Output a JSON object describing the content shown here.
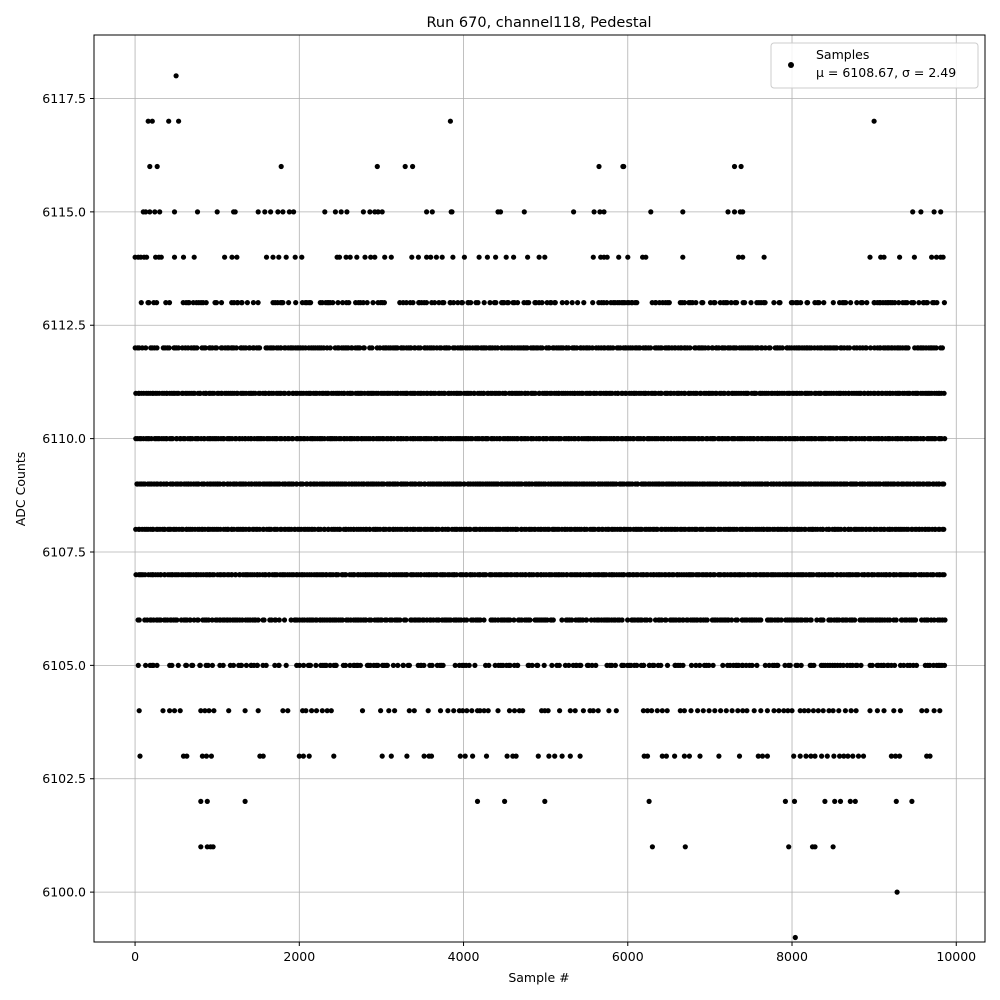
{
  "chart_data": {
    "type": "scatter",
    "title": "Run 670, channel118, Pedestal",
    "xlabel": "Sample #",
    "ylabel": "ADC Counts",
    "xlim": [
      -500,
      10350
    ],
    "ylim": [
      6098.9,
      6118.9
    ],
    "xticks": [
      0,
      2000,
      4000,
      6000,
      8000,
      10000
    ],
    "xtick_labels": [
      "0",
      "2000",
      "4000",
      "6000",
      "8000",
      "10000"
    ],
    "yticks": [
      6100.0,
      6102.5,
      6105.0,
      6107.5,
      6110.0,
      6112.5,
      6115.0,
      6117.5
    ],
    "ytick_labels": [
      "6100.0",
      "6102.5",
      "6105.0",
      "6107.5",
      "6110.0",
      "6112.5",
      "6115.0",
      "6117.5"
    ],
    "grid": true,
    "legend_position": "top-right",
    "series": [
      {
        "name": "Samples",
        "color": "#000000",
        "marker": "dot",
        "stats_label": "μ = 6108.67, σ = 2.49",
        "mu": 6108.67,
        "sigma": 2.49,
        "x_range": [
          0,
          9840
        ],
        "n_samples": 9840,
        "levels": [
          {
            "y": 6099,
            "x": [
              8040
            ]
          },
          {
            "y": 6100,
            "x": [
              9280
            ]
          },
          {
            "y": 6101,
            "x": [
              800,
              880,
              920,
              950,
              6300,
              6700,
              7960,
              8250,
              8280,
              8500
            ]
          },
          {
            "y": 6102,
            "x": [
              800,
              880,
              1340,
              4170,
              4500,
              4990,
              6260,
              7920,
              8030,
              8400,
              8520,
              8590,
              8710,
              8770,
              9270,
              9460
            ]
          },
          {
            "y": 6103,
            "x": [
              60,
              590,
              630,
              820,
              870,
              930,
              1520,
              1560,
              2000,
              2050,
              2120,
              2420,
              3010,
              3120,
              3310,
              3520,
              3580,
              3610,
              3960,
              4020,
              4110,
              4280,
              4530,
              4600,
              4640,
              4910,
              5040,
              5110,
              5200,
              5300,
              5420,
              6200,
              6240,
              6420,
              6470,
              6570,
              6690,
              6750,
              6880,
              7110,
              7360,
              7590,
              7640,
              7700,
              8020,
              8100,
              8170,
              8230,
              8280,
              8360,
              8430,
              8510,
              8580,
              8630,
              8680,
              8740,
              8810,
              8870,
              9210,
              9260,
              9310,
              9640,
              9680
            ]
          },
          {
            "y": 6104,
            "x": [
              50,
              340,
              420,
              480,
              550,
              800,
              850,
              900,
              960,
              1140,
              1340,
              1500,
              1800,
              1860,
              2040,
              2080,
              2150,
              2210,
              2280,
              2340,
              2390,
              2770,
              2990,
              3090,
              3160,
              3340,
              3400,
              3570,
              3720,
              3810,
              3880,
              3950,
              3990,
              4040,
              4100,
              4170,
              4200,
              4250,
              4300,
              4420,
              4560,
              4620,
              4680,
              4720,
              4950,
              4990,
              5030,
              5170,
              5300,
              5360,
              5460,
              5540,
              5580,
              5640,
              5770,
              5860,
              6190,
              6240,
              6290,
              6360,
              6420,
              6480,
              6640,
              6690,
              6770,
              6850,
              6920,
              6990,
              7060,
              7130,
              7200,
              7270,
              7340,
              7400,
              7450,
              7540,
              7620,
              7700,
              7780,
              7840,
              7900,
              7950,
              8000,
              8100,
              8150,
              8200,
              8260,
              8320,
              8380,
              8450,
              8500,
              8570,
              8650,
              8720,
              8780,
              8950,
              9040,
              9120,
              9240,
              9320,
              9580,
              9640,
              9730,
              9800
            ]
          }
        ],
        "dense_levels": [
          {
            "y": 6105,
            "density": 0.55
          },
          {
            "y": 6106,
            "density": 0.85
          },
          {
            "y": 6107,
            "density": 1.0
          },
          {
            "y": 6108,
            "density": 1.0
          },
          {
            "y": 6109,
            "density": 1.0
          },
          {
            "y": 6110,
            "density": 1.0
          },
          {
            "y": 6111,
            "density": 1.0
          },
          {
            "y": 6112,
            "density": 0.9
          },
          {
            "y": 6113,
            "density": 0.55
          }
        ],
        "sparse_levels": [
          {
            "y": 6114,
            "x": [
              0,
              40,
              70,
              110,
              140,
              250,
              290,
              320,
              480,
              590,
              720,
              1090,
              1180,
              1240,
              1600,
              1680,
              1750,
              1840,
              1950,
              2030,
              2460,
              2490,
              2570,
              2620,
              2700,
              2800,
              2870,
              2920,
              3040,
              3120,
              3370,
              3450,
              3550,
              3600,
              3670,
              3740,
              3870,
              4010,
              4190,
              4290,
              4390,
              4520,
              4610,
              4780,
              4920,
              4990,
              5580,
              5670,
              5710,
              5750,
              5890,
              6000,
              6180,
              6220,
              6670,
              7350,
              7400,
              7660,
              8950,
              9080,
              9120,
              9310,
              9490,
              9700,
              9760,
              9810,
              9840
            ]
          },
          {
            "y": 6115,
            "x": [
              100,
              130,
              180,
              240,
              300,
              480,
              760,
              1000,
              1200,
              1220,
              1500,
              1580,
              1650,
              1740,
              1800,
              1880,
              1930,
              2310,
              2440,
              2510,
              2580,
              2780,
              2860,
              2920,
              2960,
              3010,
              3550,
              3620,
              3850,
              3860,
              4420,
              4450,
              4740,
              5340,
              5590,
              5660,
              5710,
              6280,
              6670,
              7220,
              7300,
              7370,
              7400,
              9470,
              9570,
              9730,
              9810
            ]
          },
          {
            "y": 6116,
            "x": [
              180,
              270,
              1780,
              2950,
              3290,
              3380,
              5650,
              5940,
              5950,
              7300,
              7380
            ]
          },
          {
            "y": 6117,
            "x": [
              160,
              210,
              410,
              530,
              3840,
              9000
            ]
          },
          {
            "y": 6118,
            "x": [
              500
            ]
          }
        ]
      }
    ]
  }
}
